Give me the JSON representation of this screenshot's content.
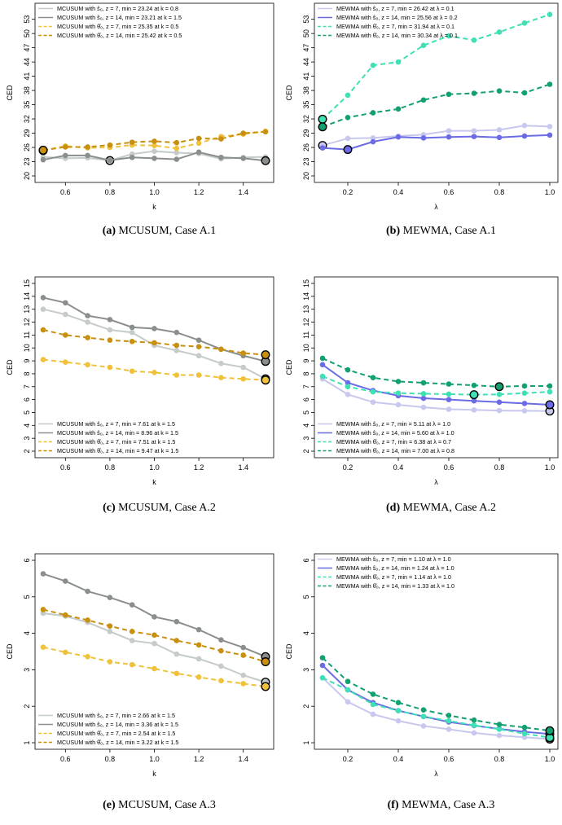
{
  "chart_data": [
    {
      "type": "line",
      "id": "a",
      "caption_label": "(a)",
      "caption_text": " MCUSUM, Case A.1",
      "xlabel": "k",
      "ylabel": "CED",
      "xlim": [
        0.5,
        1.5
      ],
      "ylim": [
        20,
        55
      ],
      "xticks": [
        "0.6",
        "0.8",
        "1.0",
        "1.2",
        "1.4"
      ],
      "yticks": [
        "20",
        "23",
        "26",
        "29",
        "32",
        "35",
        "38",
        "41",
        "44",
        "47",
        "50",
        "53"
      ],
      "legend_position": "top-left",
      "x": [
        0.5,
        0.6,
        0.7,
        0.8,
        0.9,
        1.0,
        1.1,
        1.2,
        1.3,
        1.4,
        1.5
      ],
      "series": [
        {
          "name": "MCUSUM with ŝ₀, z = 7, min = 23.24 at k = 0.8",
          "color": "#c4cbc8",
          "dash": false,
          "values": [
            24.0,
            23.7,
            23.8,
            23.24,
            24.6,
            25.2,
            24.9,
            24.7,
            23.6,
            23.9,
            24.0
          ],
          "min_index": 3
        },
        {
          "name": "MCUSUM with ŝ₀, z = 14, min = 23.21 at k = 1.5",
          "color": "#8a8f8c",
          "dash": false,
          "values": [
            23.4,
            24.3,
            24.3,
            23.3,
            23.9,
            23.7,
            23.5,
            25.0,
            23.9,
            23.7,
            23.21
          ],
          "min_index": 10
        },
        {
          "name": "MCUSUM with θ̂₀, z = 7, min = 25.35 at k = 0.5",
          "color": "#f0c13a",
          "dash": true,
          "values": [
            25.35,
            26.3,
            25.9,
            26.0,
            26.5,
            26.4,
            25.8,
            26.9,
            28.3,
            28.8,
            29.4
          ],
          "min_index": 0
        },
        {
          "name": "MCUSUM with θ̂₀, z = 14, min = 25.42 at k = 0.5",
          "color": "#c8900e",
          "dash": true,
          "values": [
            25.42,
            26.1,
            26.1,
            26.5,
            27.1,
            27.3,
            27.0,
            27.9,
            27.8,
            29.0,
            29.3
          ],
          "min_index": 0
        }
      ]
    },
    {
      "type": "line",
      "id": "b",
      "caption_label": "(b)",
      "caption_text": " MEWMA, Case A.1",
      "xlabel": "λ",
      "ylabel": "CED",
      "xlim": [
        0.1,
        1.0
      ],
      "ylim": [
        20,
        55
      ],
      "xticks": [
        "0.2",
        "0.4",
        "0.6",
        "0.8",
        "1.0"
      ],
      "yticks": [
        "20",
        "23",
        "26",
        "29",
        "32",
        "35",
        "38",
        "41",
        "44",
        "47",
        "50",
        "53"
      ],
      "legend_position": "top-left",
      "x": [
        0.1,
        0.2,
        0.3,
        0.4,
        0.5,
        0.6,
        0.7,
        0.8,
        0.9,
        1.0
      ],
      "series": [
        {
          "name": "MEWMA with ŝ₀, z = 7, min = 26.42 at λ = 0.1",
          "color": "#c8c8ef",
          "dash": false,
          "values": [
            26.42,
            27.9,
            28.0,
            28.4,
            28.7,
            29.5,
            29.5,
            29.7,
            30.6,
            30.4
          ],
          "min_index": 0
        },
        {
          "name": "MEWMA with ŝ₀, z = 14, min = 25.56 at λ = 0.2",
          "color": "#6b6be6",
          "dash": false,
          "values": [
            25.9,
            25.56,
            27.2,
            28.2,
            28.0,
            28.2,
            28.3,
            28.1,
            28.4,
            28.6
          ],
          "min_index": 1
        },
        {
          "name": "MEWMA with θ̂₀, z = 7, min = 31.94 at λ = 0.1",
          "color": "#3ee0b4",
          "dash": true,
          "values": [
            31.94,
            37.0,
            43.3,
            44.0,
            47.5,
            49.5,
            48.6,
            50.3,
            52.2,
            54.0
          ],
          "min_index": 0
        },
        {
          "name": "MEWMA with θ̂₀, z = 14, min = 30.34 at λ = 0.1",
          "color": "#12a070",
          "dash": true,
          "values": [
            30.34,
            32.3,
            33.3,
            34.1,
            36.0,
            37.2,
            37.4,
            37.9,
            37.5,
            39.3
          ],
          "min_index": 0
        }
      ]
    },
    {
      "type": "line",
      "id": "c",
      "caption_label": "(c)",
      "caption_text": " MCUSUM, Case A.2",
      "xlabel": "k",
      "ylabel": "CED",
      "xlim": [
        0.5,
        1.5
      ],
      "ylim": [
        2,
        15
      ],
      "xticks": [
        "0.6",
        "0.8",
        "1.0",
        "1.2",
        "1.4"
      ],
      "yticks": [
        "2",
        "3",
        "4",
        "5",
        "6",
        "7",
        "8",
        "9",
        "10",
        "11",
        "12",
        "13",
        "14",
        "15"
      ],
      "legend_position": "bottom-left",
      "x": [
        0.5,
        0.6,
        0.7,
        0.8,
        0.9,
        1.0,
        1.1,
        1.2,
        1.3,
        1.4,
        1.5
      ],
      "series": [
        {
          "name": "MCUSUM with ŝ₀, z = 7, min = 7.61 at k = 1.5",
          "color": "#c4cbc8",
          "dash": false,
          "values": [
            13.0,
            12.6,
            12.0,
            11.4,
            11.2,
            10.2,
            9.8,
            9.4,
            8.8,
            8.5,
            7.61
          ],
          "min_index": 10
        },
        {
          "name": "MCUSUM with ŝ₀, z = 14, min = 8.96 at k = 1.5",
          "color": "#8a8f8c",
          "dash": false,
          "values": [
            13.9,
            13.5,
            12.5,
            12.2,
            11.6,
            11.5,
            11.2,
            10.6,
            9.9,
            9.4,
            8.96
          ],
          "min_index": 10
        },
        {
          "name": "MCUSUM with θ̂₀, z = 7, min = 7.51 at k = 1.5",
          "color": "#f0c13a",
          "dash": true,
          "values": [
            9.1,
            8.9,
            8.7,
            8.5,
            8.2,
            8.1,
            7.9,
            7.9,
            7.7,
            7.6,
            7.51
          ],
          "min_index": 10
        },
        {
          "name": "MCUSUM with θ̂₀, z = 14, min = 9.47 at k = 1.5",
          "color": "#c8900e",
          "dash": true,
          "values": [
            11.4,
            11.0,
            10.8,
            10.6,
            10.5,
            10.4,
            10.2,
            10.1,
            9.9,
            9.6,
            9.47
          ],
          "min_index": 10
        }
      ]
    },
    {
      "type": "line",
      "id": "d",
      "caption_label": "(d)",
      "caption_text": " MEWMA, Case A.2",
      "xlabel": "λ",
      "ylabel": "CED",
      "xlim": [
        0.1,
        1.0
      ],
      "ylim": [
        2,
        15
      ],
      "xticks": [
        "0.2",
        "0.4",
        "0.6",
        "0.8",
        "1.0"
      ],
      "yticks": [
        "2",
        "3",
        "4",
        "5",
        "6",
        "7",
        "8",
        "9",
        "10",
        "11",
        "12",
        "13",
        "14",
        "15"
      ],
      "legend_position": "bottom-left",
      "x": [
        0.1,
        0.2,
        0.3,
        0.4,
        0.5,
        0.6,
        0.7,
        0.8,
        0.9,
        1.0
      ],
      "series": [
        {
          "name": "MEWMA with ŝ₀, z = 7, min = 5.11 at λ = 1.0",
          "color": "#c8c8ef",
          "dash": false,
          "values": [
            7.6,
            6.4,
            5.8,
            5.6,
            5.4,
            5.25,
            5.2,
            5.15,
            5.13,
            5.11
          ],
          "min_index": 9
        },
        {
          "name": "MEWMA with ŝ₀, z = 14, min = 5.60 at λ = 1.0",
          "color": "#6b6be6",
          "dash": false,
          "values": [
            8.7,
            7.3,
            6.7,
            6.3,
            6.1,
            6.0,
            5.9,
            5.8,
            5.7,
            5.6
          ],
          "min_index": 9
        },
        {
          "name": "MEWMA with θ̂₀, z = 7, min = 6.38 at λ = 0.7",
          "color": "#3ee0b4",
          "dash": true,
          "values": [
            7.8,
            7.0,
            6.6,
            6.5,
            6.45,
            6.42,
            6.38,
            6.4,
            6.5,
            6.6
          ],
          "min_index": 6
        },
        {
          "name": "MEWMA with θ̂₀, z = 14, min = 7.00 at λ = 0.8",
          "color": "#12a070",
          "dash": true,
          "values": [
            9.2,
            8.3,
            7.7,
            7.4,
            7.3,
            7.2,
            7.1,
            7.0,
            7.05,
            7.05
          ],
          "min_index": 7
        }
      ]
    },
    {
      "type": "line",
      "id": "e",
      "caption_label": "(e)",
      "caption_text": " MCUSUM, Case A.3",
      "xlabel": "k",
      "ylabel": "CED",
      "xlim": [
        0.5,
        1.5
      ],
      "ylim": [
        1,
        6
      ],
      "xticks": [
        "0.6",
        "0.8",
        "1.0",
        "1.2",
        "1.4"
      ],
      "yticks": [
        "1",
        "2",
        "3",
        "4",
        "5",
        "6"
      ],
      "legend_position": "bottom-left",
      "x": [
        0.5,
        0.6,
        0.7,
        0.8,
        0.9,
        1.0,
        1.1,
        1.2,
        1.3,
        1.4,
        1.5
      ],
      "series": [
        {
          "name": "MCUSUM with ŝ₀, z = 7, min = 2.66 at k = 1.5",
          "color": "#c4cbc8",
          "dash": false,
          "values": [
            4.55,
            4.47,
            4.3,
            4.05,
            3.8,
            3.72,
            3.43,
            3.3,
            3.1,
            2.85,
            2.66
          ],
          "min_index": 10
        },
        {
          "name": "MCUSUM with ŝ₀, z = 14, min = 3.36 at k = 1.5",
          "color": "#8a8f8c",
          "dash": false,
          "values": [
            5.63,
            5.43,
            5.15,
            4.98,
            4.78,
            4.45,
            4.32,
            4.1,
            3.82,
            3.61,
            3.36
          ],
          "min_index": 10
        },
        {
          "name": "MCUSUM with θ̂₀, z = 7, min = 2.54 at k = 1.5",
          "color": "#f0c13a",
          "dash": true,
          "values": [
            3.62,
            3.48,
            3.36,
            3.22,
            3.14,
            3.03,
            2.9,
            2.8,
            2.7,
            2.62,
            2.54
          ],
          "min_index": 10
        },
        {
          "name": "MCUSUM with θ̂₀, z = 14, min = 3.22 at k = 1.5",
          "color": "#c8900e",
          "dash": true,
          "values": [
            4.65,
            4.5,
            4.36,
            4.2,
            4.05,
            3.95,
            3.8,
            3.68,
            3.52,
            3.4,
            3.22
          ],
          "min_index": 10
        }
      ]
    },
    {
      "type": "line",
      "id": "f",
      "caption_label": "(f)",
      "caption_text": " MEWMA, Case A.3",
      "xlabel": "λ",
      "ylabel": "CED",
      "xlim": [
        0.1,
        1.0
      ],
      "ylim": [
        1,
        6
      ],
      "xticks": [
        "0.2",
        "0.4",
        "0.6",
        "0.8",
        "1.0"
      ],
      "yticks": [
        "1",
        "2",
        "3",
        "4",
        "5",
        "6"
      ],
      "legend_position": "top-left",
      "x": [
        0.1,
        0.2,
        0.3,
        0.4,
        0.5,
        0.6,
        0.7,
        0.8,
        0.9,
        1.0
      ],
      "series": [
        {
          "name": "MEWMA with ŝ₀, z = 7, min = 1.10 at λ = 1.0",
          "color": "#c8c8ef",
          "dash": false,
          "values": [
            2.78,
            2.12,
            1.78,
            1.6,
            1.46,
            1.37,
            1.27,
            1.2,
            1.15,
            1.1
          ],
          "min_index": 9
        },
        {
          "name": "MEWMA with ŝ₀, z = 14, min = 1.24 at λ = 1.0",
          "color": "#6b6be6",
          "dash": false,
          "values": [
            3.12,
            2.45,
            2.1,
            1.88,
            1.72,
            1.57,
            1.47,
            1.38,
            1.3,
            1.24
          ],
          "min_index": 9
        },
        {
          "name": "MEWMA with θ̂₀, z = 7, min = 1.14 at λ = 1.0",
          "color": "#3ee0b4",
          "dash": true,
          "values": [
            2.78,
            2.45,
            2.05,
            1.88,
            1.72,
            1.6,
            1.48,
            1.37,
            1.25,
            1.14
          ],
          "min_index": 9
        },
        {
          "name": "MEWMA with θ̂₀, z = 14, min = 1.33 at λ = 1.0",
          "color": "#12a070",
          "dash": true,
          "values": [
            3.33,
            2.68,
            2.33,
            2.1,
            1.9,
            1.75,
            1.62,
            1.5,
            1.42,
            1.33
          ],
          "min_index": 9
        }
      ]
    }
  ]
}
